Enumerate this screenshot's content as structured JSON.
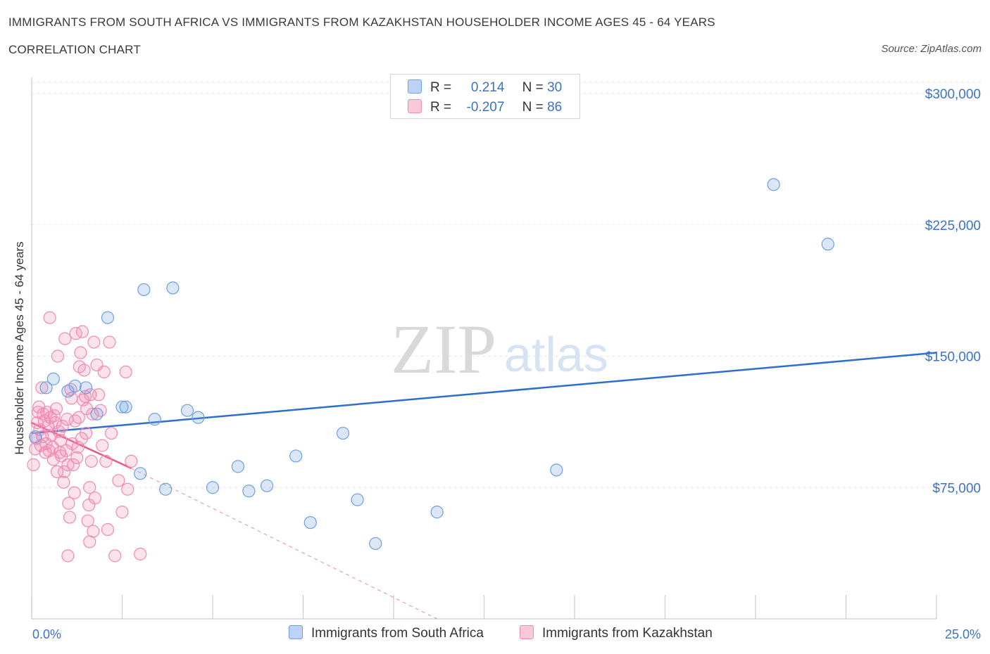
{
  "header": {
    "title": "IMMIGRANTS FROM SOUTH AFRICA VS IMMIGRANTS FROM KAZAKHSTAN HOUSEHOLDER INCOME AGES 45 - 64 YEARS",
    "subtitle": "CORRELATION CHART",
    "source": "Source: ZipAtlas.com"
  },
  "legend": {
    "r_label": "R =",
    "n_label": "N =",
    "south_africa": {
      "r": "0.214",
      "n": "30"
    },
    "kazakhstan": {
      "r": "-0.207",
      "n": "86"
    }
  },
  "watermark": {
    "zip": "ZIP",
    "atlas": "atlas"
  },
  "chart_data": {
    "type": "scatter",
    "title": "IMMIGRANTS FROM SOUTH AFRICA VS IMMIGRANTS FROM KAZAKHSTAN HOUSEHOLDER INCOME AGES 45 - 64 YEARS",
    "xlabel": "",
    "ylabel": "Householder Income Ages 45 - 64 years",
    "xlim": [
      0,
      25
    ],
    "ylim": [
      0,
      300000
    ],
    "x_tick_labels": [
      "0.0%",
      "25.0%"
    ],
    "y_ticks": [
      75000,
      150000,
      225000,
      300000
    ],
    "y_tick_labels": [
      "$75,000",
      "$150,000",
      "$225,000",
      "$300,000"
    ],
    "grid": true,
    "series": [
      {
        "name": "Immigrants from South Africa",
        "color": "#6f9fe0",
        "line_color": "#2e6fcc",
        "trend": {
          "x": [
            0,
            25
          ],
          "y": [
            106000,
            152000
          ]
        },
        "points": [
          [
            0.4,
            132000
          ],
          [
            0.6,
            137000
          ],
          [
            1.0,
            130000
          ],
          [
            1.2,
            133000
          ],
          [
            1.5,
            132000
          ],
          [
            1.8,
            117000
          ],
          [
            2.1,
            172000
          ],
          [
            2.5,
            121000
          ],
          [
            2.6,
            121000
          ],
          [
            3.0,
            83000
          ],
          [
            3.1,
            188000
          ],
          [
            3.4,
            114000
          ],
          [
            3.7,
            74000
          ],
          [
            3.9,
            189000
          ],
          [
            4.3,
            119000
          ],
          [
            4.6,
            115000
          ],
          [
            5.0,
            75000
          ],
          [
            5.7,
            87000
          ],
          [
            6.0,
            73000
          ],
          [
            6.5,
            76000
          ],
          [
            7.3,
            93000
          ],
          [
            7.7,
            55000
          ],
          [
            8.6,
            106000
          ],
          [
            9.0,
            68000
          ],
          [
            9.5,
            43000
          ],
          [
            11.2,
            61000
          ],
          [
            14.5,
            85000
          ],
          [
            20.5,
            248000
          ],
          [
            22.0,
            214000
          ],
          [
            0.1,
            104000
          ]
        ]
      },
      {
        "name": "Immigrants from Kazakhstan",
        "color": "#f08bb0",
        "line_color": "#e8578a",
        "trend": {
          "x": [
            0,
            2.75
          ],
          "y": [
            112000,
            86000
          ]
        },
        "trend_dashed": {
          "x": [
            2.75,
            11.2
          ],
          "y": [
            86000,
            0
          ]
        },
        "points": [
          [
            0.05,
            88000
          ],
          [
            0.1,
            97000
          ],
          [
            0.12,
            103000
          ],
          [
            0.15,
            112000
          ],
          [
            0.18,
            118000
          ],
          [
            0.2,
            121000
          ],
          [
            0.22,
            108000
          ],
          [
            0.25,
            99000
          ],
          [
            0.28,
            132000
          ],
          [
            0.3,
            104000
          ],
          [
            0.32,
            117000
          ],
          [
            0.35,
            113000
          ],
          [
            0.38,
            95000
          ],
          [
            0.4,
            100000
          ],
          [
            0.42,
            118000
          ],
          [
            0.45,
            110000
          ],
          [
            0.48,
            96000
          ],
          [
            0.5,
            172000
          ],
          [
            0.52,
            115000
          ],
          [
            0.55,
            105000
          ],
          [
            0.58,
            98000
          ],
          [
            0.6,
            91000
          ],
          [
            0.62,
            116000
          ],
          [
            0.65,
            112000
          ],
          [
            0.68,
            120000
          ],
          [
            0.7,
            84000
          ],
          [
            0.72,
            150000
          ],
          [
            0.75,
            107000
          ],
          [
            0.78,
            95000
          ],
          [
            0.8,
            102000
          ],
          [
            0.82,
            93000
          ],
          [
            0.85,
            110000
          ],
          [
            0.88,
            78000
          ],
          [
            0.9,
            84000
          ],
          [
            0.92,
            160000
          ],
          [
            0.95,
            96000
          ],
          [
            0.98,
            114000
          ],
          [
            1.0,
            88000
          ],
          [
            1.02,
            66000
          ],
          [
            1.05,
            58000
          ],
          [
            1.08,
            131000
          ],
          [
            1.1,
            126000
          ],
          [
            1.12,
            100000
          ],
          [
            1.15,
            88000
          ],
          [
            1.18,
            72000
          ],
          [
            1.2,
            113000
          ],
          [
            1.22,
            163000
          ],
          [
            1.25,
            92000
          ],
          [
            1.28,
            98000
          ],
          [
            1.3,
            115000
          ],
          [
            1.32,
            144000
          ],
          [
            1.35,
            152000
          ],
          [
            1.38,
            103000
          ],
          [
            1.4,
            164000
          ],
          [
            1.42,
            125000
          ],
          [
            1.45,
            142000
          ],
          [
            1.48,
            127000
          ],
          [
            1.5,
            106000
          ],
          [
            1.52,
            120000
          ],
          [
            1.55,
            56000
          ],
          [
            1.58,
            65000
          ],
          [
            1.6,
            75000
          ],
          [
            1.62,
            128000
          ],
          [
            1.65,
            90000
          ],
          [
            1.68,
            117000
          ],
          [
            1.7,
            50000
          ],
          [
            1.72,
            158000
          ],
          [
            1.75,
            69000
          ],
          [
            1.8,
            145000
          ],
          [
            1.85,
            128000
          ],
          [
            1.9,
            119000
          ],
          [
            1.95,
            99000
          ],
          [
            2.0,
            141000
          ],
          [
            2.05,
            90000
          ],
          [
            2.1,
            51000
          ],
          [
            2.15,
            158000
          ],
          [
            2.2,
            106000
          ],
          [
            2.3,
            36000
          ],
          [
            2.4,
            79000
          ],
          [
            2.5,
            61000
          ],
          [
            2.6,
            141000
          ],
          [
            2.65,
            74000
          ],
          [
            2.75,
            90000
          ],
          [
            3.0,
            37000
          ],
          [
            1.0,
            36000
          ],
          [
            1.6,
            44000
          ]
        ]
      }
    ]
  }
}
